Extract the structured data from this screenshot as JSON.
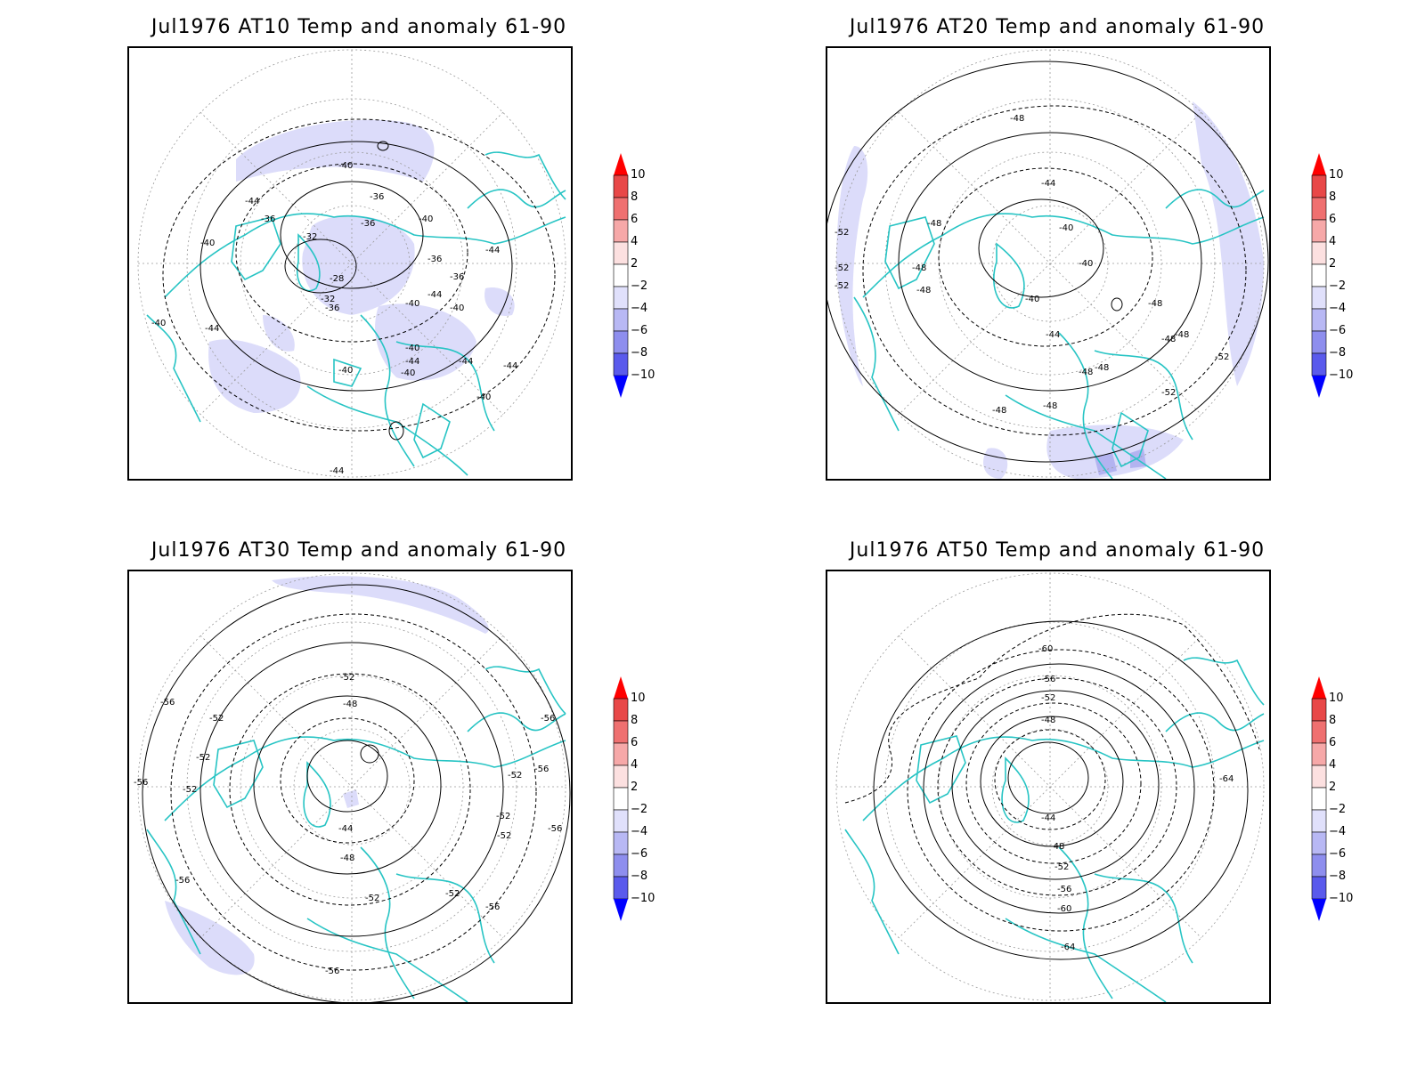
{
  "colorbar": {
    "levels": [
      "10",
      "8",
      "6",
      "4",
      "2",
      "−2",
      "−4",
      "−6",
      "−8",
      "−10"
    ],
    "colors": [
      "#e02020",
      "#e84848",
      "#ef7070",
      "#f6a8a8",
      "#fce0e0",
      "#ffffff",
      "#e0e0fb",
      "#b8b8f4",
      "#8e8eee",
      "#5a5aec",
      "#2a2af0"
    ],
    "top_arrow_color": "#ff0000",
    "bottom_arrow_color": "#0000ff"
  },
  "colors": {
    "coastline": "#27c4c4",
    "contour": "#000000",
    "anomaly_neg": "#dcdcfa",
    "anomaly_neg2": "#b3b3f0",
    "grid": "#9a9a9a"
  },
  "panels": [
    {
      "id": "at10",
      "title": "Jul1976 AT10 Temp and anomaly 61-90",
      "contour_labels": [
        "-40",
        "-36",
        "-36",
        "-36",
        "-32",
        "-40",
        "-40",
        "-28",
        "-32",
        "-36",
        "-44",
        "-36",
        "-36",
        "-44",
        "-40",
        "-40",
        "-44",
        "-40",
        "-44",
        "-44",
        "-40",
        "-40",
        "-44",
        "-44",
        "-40",
        "-40",
        "-44"
      ]
    },
    {
      "id": "at20",
      "title": "Jul1976 AT20 Temp and anomaly 61-90",
      "contour_labels": [
        "-48",
        "-44",
        "-40",
        "-48",
        "-48",
        "-48",
        "-40",
        "-40",
        "-44",
        "-48",
        "-48",
        "-48",
        "-48",
        "-52",
        "-52",
        "-52",
        "-52",
        "-48",
        "-48",
        "-52",
        "-48"
      ]
    },
    {
      "id": "at30",
      "title": "Jul1976 AT30 Temp and anomaly 61-90",
      "contour_labels": [
        "-52",
        "-48",
        "-44",
        "-48",
        "-52",
        "-52",
        "-52",
        "-52",
        "-56",
        "-52",
        "-56",
        "-56",
        "-52",
        "-52",
        "-56",
        "-56",
        "-56",
        "-56",
        "-52",
        "-56"
      ]
    },
    {
      "id": "at50",
      "title": "Jul1976 AT50 Temp and anomaly 61-90",
      "contour_labels": [
        "-60",
        "-56",
        "-52",
        "-48",
        "-44",
        "-48",
        "-52",
        "-56",
        "-60",
        "-64",
        "-64"
      ]
    }
  ]
}
